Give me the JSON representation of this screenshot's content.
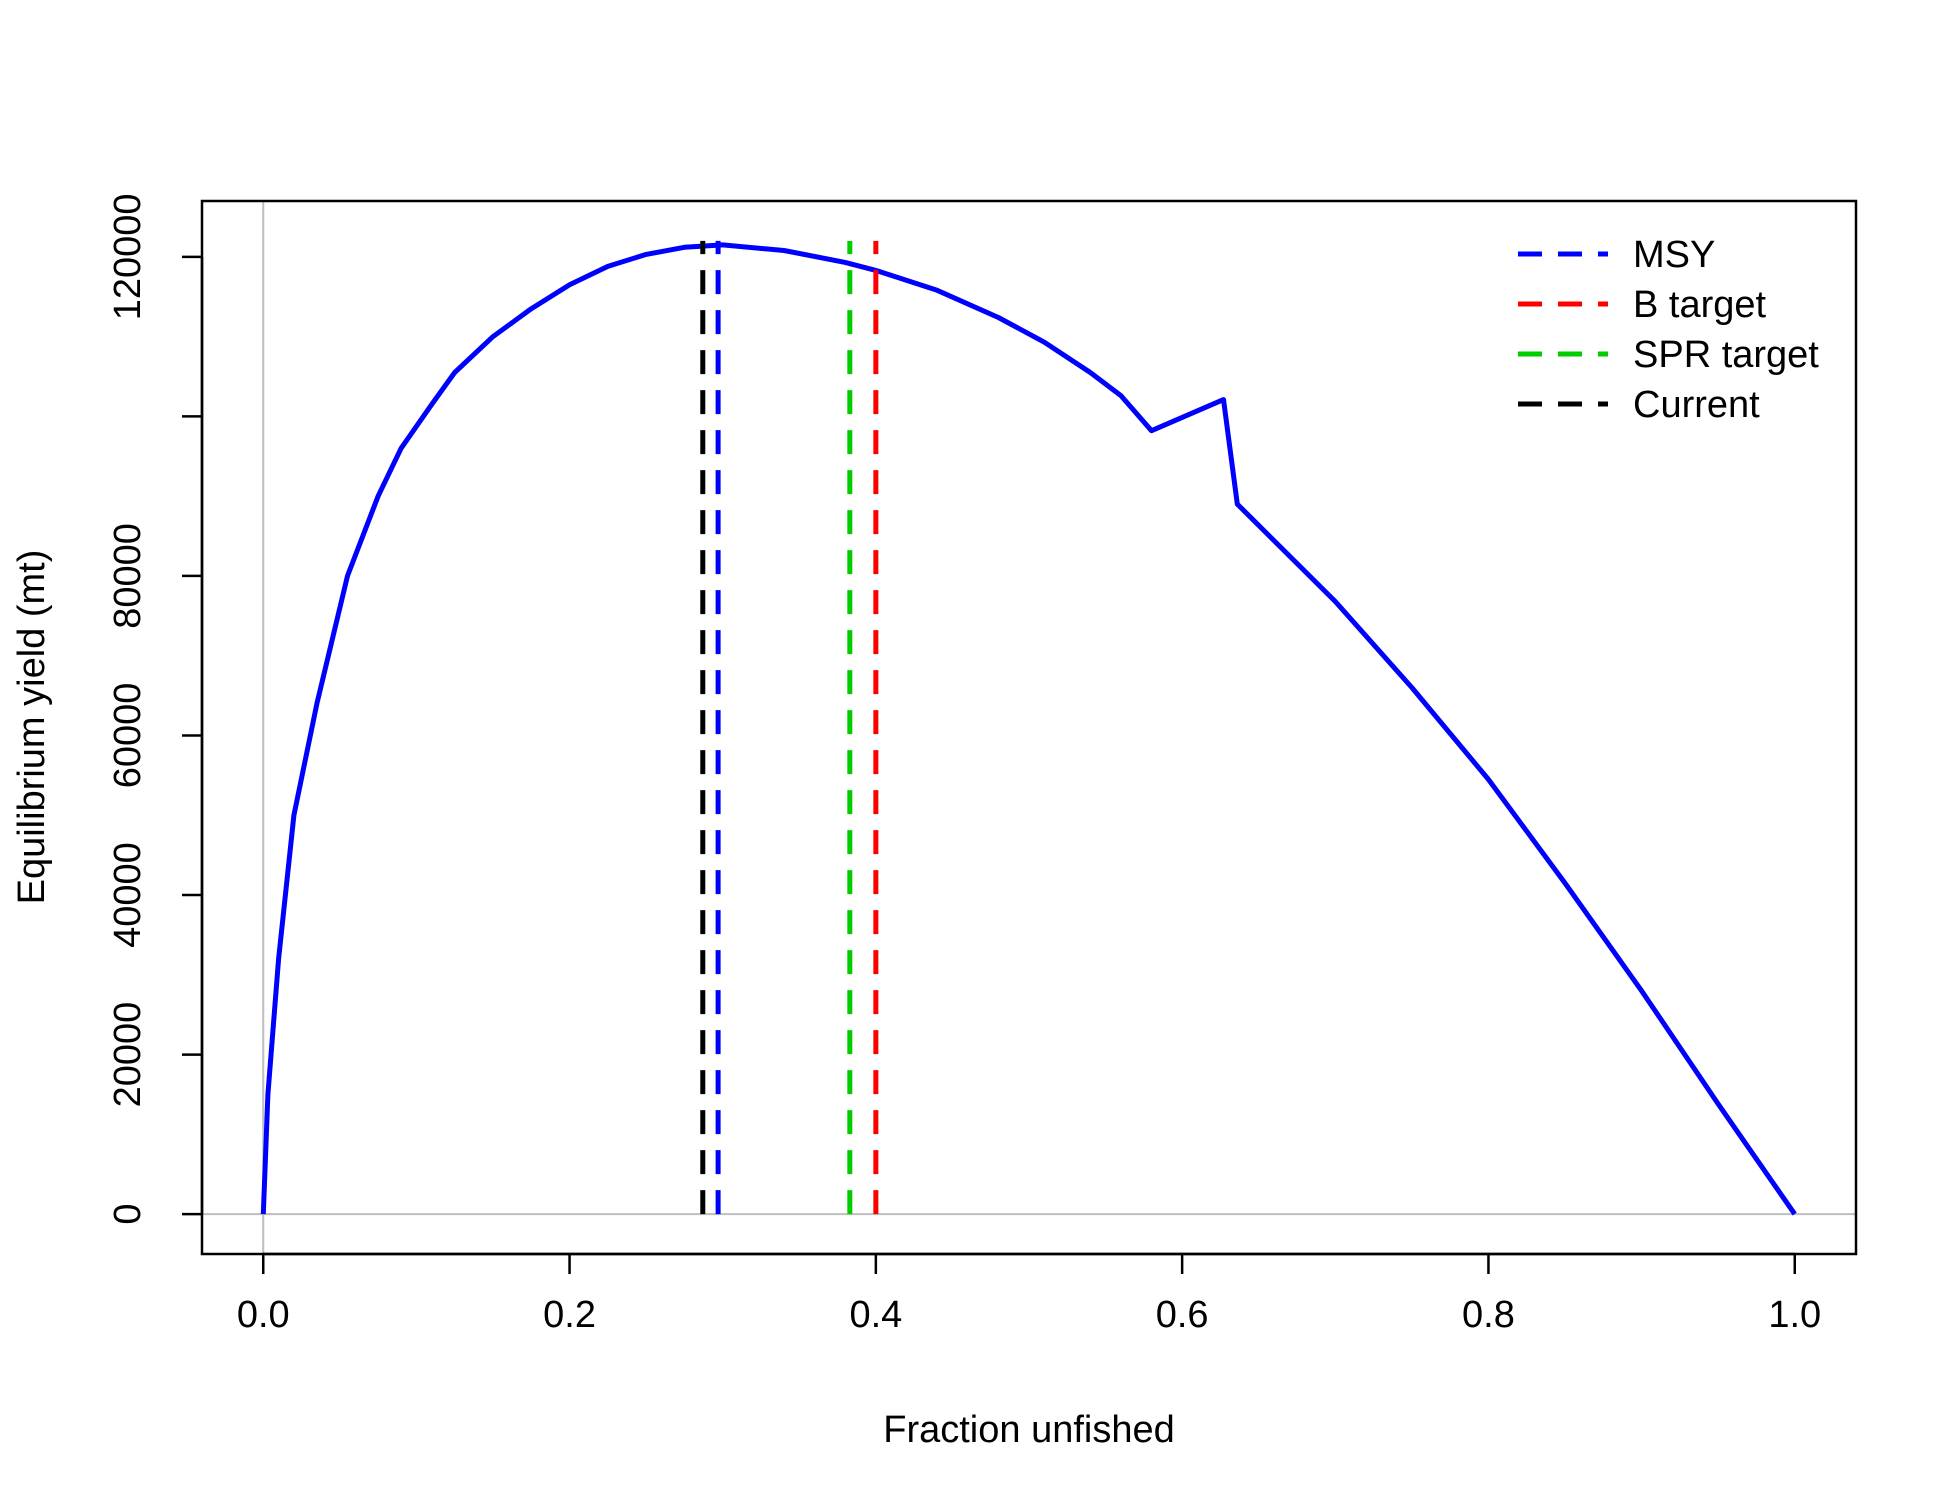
{
  "chart_data": {
    "type": "line",
    "xlabel": "Fraction unfished",
    "ylabel": "Equilibrium yield (mt)",
    "xlim": [
      -0.04,
      1.04
    ],
    "ylim": [
      -5000,
      127000
    ],
    "xticks": [
      0.0,
      0.2,
      0.4,
      0.6,
      0.8,
      1.0
    ],
    "xtick_labels": [
      "0.0",
      "0.2",
      "0.4",
      "0.6",
      "0.8",
      "1.0"
    ],
    "yticks": [
      0,
      20000,
      40000,
      60000,
      80000,
      100000,
      120000
    ],
    "ytick_labels": [
      "0",
      "20000",
      "40000",
      "60000",
      "80000",
      "",
      "120000"
    ],
    "grid": false,
    "reference_lines": {
      "x": 0,
      "y": 0,
      "color": "#bebebe"
    },
    "series": [
      {
        "color": "#0000ff",
        "x": [
          0.0,
          0.003,
          0.01,
          0.02,
          0.035,
          0.055,
          0.075,
          0.09,
          0.11,
          0.125,
          0.15,
          0.175,
          0.2,
          0.225,
          0.25,
          0.275,
          0.3,
          0.34,
          0.38,
          0.4,
          0.44,
          0.48,
          0.51,
          0.54,
          0.56,
          0.58,
          0.627,
          0.636,
          0.7,
          0.75,
          0.8,
          0.85,
          0.9,
          0.95,
          1.0
        ],
        "values": [
          0,
          15000,
          32000,
          50000,
          64000,
          80000,
          90000,
          96000,
          101500,
          105500,
          110000,
          113500,
          116500,
          118800,
          120300,
          121200,
          121500,
          120800,
          119300,
          118300,
          115800,
          112400,
          109300,
          105500,
          102600,
          98200,
          102100,
          89000,
          76800,
          66000,
          54500,
          41500,
          28000,
          13800,
          0
        ]
      }
    ],
    "vlines": [
      {
        "name": "MSY",
        "x": 0.297,
        "color": "#0000ff"
      },
      {
        "name": "B target",
        "x": 0.4,
        "color": "#ff0000"
      },
      {
        "name": "SPR target",
        "x": 0.383,
        "color": "#00cd00"
      },
      {
        "name": "Current",
        "x": 0.287,
        "color": "#000000"
      }
    ],
    "vline_top": 122000,
    "legend": {
      "position": "top-right",
      "entries": [
        {
          "label": "MSY",
          "color": "#0000ff"
        },
        {
          "label": "B target",
          "color": "#ff0000"
        },
        {
          "label": "SPR target",
          "color": "#00cd00"
        },
        {
          "label": "Current",
          "color": "#000000"
        }
      ]
    }
  }
}
